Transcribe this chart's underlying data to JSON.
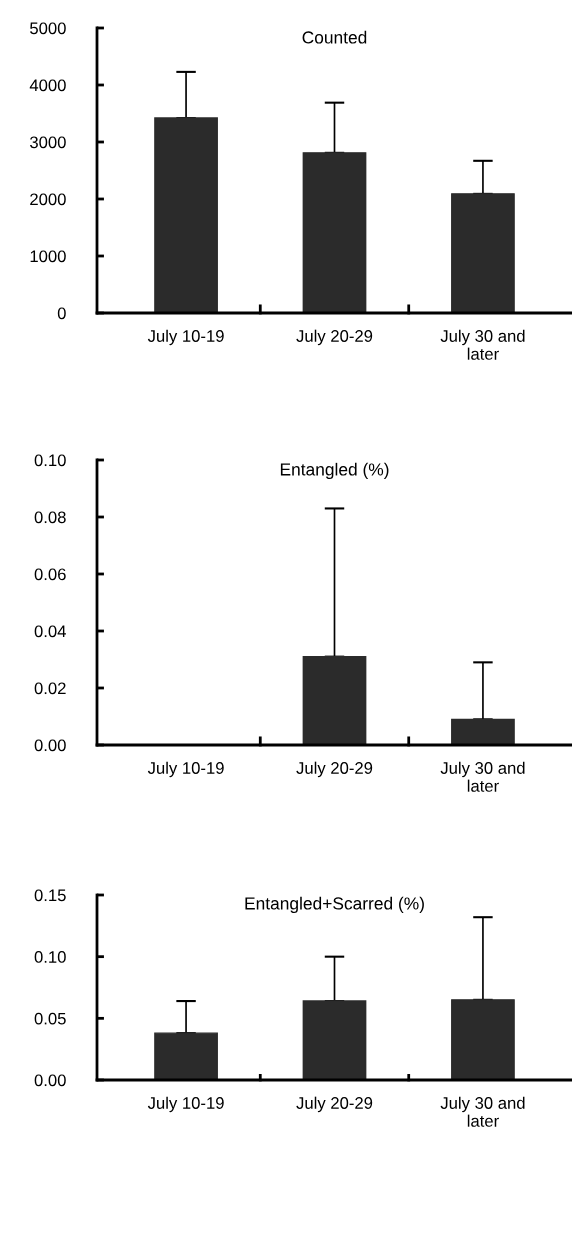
{
  "chart_data": [
    {
      "type": "bar",
      "title": "Counted",
      "categories": [
        "July 10-19",
        "July 20-29",
        "July 30 and\nlater"
      ],
      "values": [
        3420,
        2810,
        2090
      ],
      "errors": [
        [
          3420,
          4230
        ],
        [
          2810,
          3690
        ],
        [
          2090,
          2670
        ]
      ],
      "color": "#2b2b2b",
      "ylim": [
        0,
        5000
      ],
      "yticks": [
        0,
        1000,
        2000,
        3000,
        4000,
        5000
      ],
      "grid": false,
      "legend": false
    },
    {
      "type": "bar",
      "title": "Entangled (%)",
      "categories": [
        "July 10-19",
        "July 20-29",
        "July 30 and\nlater"
      ],
      "values": [
        0,
        0.031,
        0.009
      ],
      "errors": [
        null,
        [
          0.031,
          0.083
        ],
        [
          0.009,
          0.029
        ]
      ],
      "color": "#2b2b2b",
      "ylim": [
        0,
        0.1
      ],
      "yticks": [
        {
          "value": 0,
          "label": "0.00"
        },
        {
          "value": 0.02,
          "label": "0.02"
        },
        {
          "value": 0.04,
          "label": "0.04"
        },
        {
          "value": 0.06,
          "label": "0.06"
        },
        {
          "value": 0.08,
          "label": "0.08"
        },
        {
          "value": 0.1,
          "label": "0.10"
        }
      ],
      "grid": false,
      "legend": false
    },
    {
      "type": "bar",
      "title": "Entangled+Scarred (%)",
      "categories": [
        "July 10-19",
        "July 20-29",
        "July 30 and\nlater"
      ],
      "values": [
        0.038,
        0.064,
        0.065
      ],
      "errors": [
        [
          0.038,
          0.064
        ],
        [
          0.064,
          0.1
        ],
        [
          0.065,
          0.132
        ]
      ],
      "color": "#2b2b2b",
      "ylim": [
        0,
        0.15
      ],
      "yticks": [
        {
          "value": 0,
          "label": "0.00"
        },
        {
          "value": 0.05,
          "label": "0.05"
        },
        {
          "value": 0.1,
          "label": "0.10"
        },
        {
          "value": 0.15,
          "label": "0.15"
        }
      ],
      "grid": false,
      "legend": false
    }
  ]
}
